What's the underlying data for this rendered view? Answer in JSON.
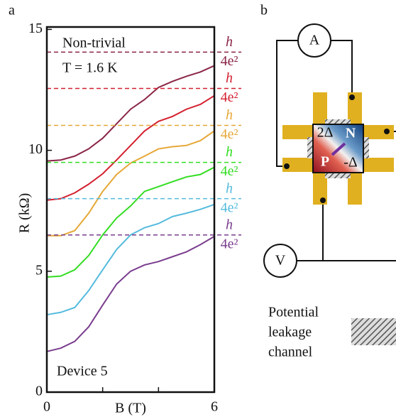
{
  "chart_data": {
    "type": "line",
    "panel_label": "a",
    "x_label": "B (T)",
    "y_label": "R (kΩ)",
    "annotations": [
      "Non-trivial",
      "T = 1.6 K",
      "Device 5"
    ],
    "x": [
      0,
      0.5,
      1,
      1.5,
      2,
      2.5,
      3,
      3.5,
      4,
      4.5,
      5,
      5.5,
      6
    ],
    "xlim": [
      0,
      6
    ],
    "xticks": [
      0,
      6
    ],
    "xminor_ticks": [
      2,
      4
    ],
    "ylim": [
      0,
      15.1
    ],
    "yticks": [
      0,
      5,
      10,
      15
    ],
    "series": [
      {
        "color": "#8b2545",
        "values": [
          9.56,
          9.6,
          9.76,
          10.06,
          10.5,
          11.1,
          11.7,
          12.1,
          12.6,
          12.85,
          13.06,
          13.24,
          13.5
        ],
        "plateau": 14.06,
        "plateau_label": {
          "numerator": "h",
          "denominator": "4e²"
        }
      },
      {
        "color": "#d42030",
        "values": [
          7.94,
          8.0,
          8.24,
          8.6,
          9.03,
          9.6,
          10.2,
          10.8,
          11.2,
          11.4,
          11.7,
          11.9,
          12.26
        ],
        "plateau": 12.56,
        "plateau_label": {
          "numerator": "h",
          "denominator": "4e²"
        }
      },
      {
        "color": "#e6a838",
        "values": [
          6.47,
          6.47,
          6.68,
          7.4,
          8.3,
          9.0,
          9.47,
          9.76,
          10.06,
          10.15,
          10.2,
          10.4,
          10.8
        ],
        "plateau": 11.03,
        "plateau_label": {
          "numerator": "h",
          "denominator": "4e²"
        }
      },
      {
        "color": "#33dd22",
        "values": [
          4.76,
          4.8,
          5.06,
          5.65,
          6.5,
          7.2,
          7.7,
          8.3,
          8.5,
          8.7,
          8.9,
          9.0,
          9.3
        ],
        "plateau": 9.5,
        "plateau_label": {
          "numerator": "h",
          "denominator": "4e²"
        }
      },
      {
        "color": "#55bbdd",
        "values": [
          3.2,
          3.3,
          3.5,
          4.2,
          5.06,
          5.9,
          6.5,
          6.8,
          6.97,
          7.26,
          7.4,
          7.56,
          7.76
        ],
        "plateau": 8.0,
        "plateau_label": {
          "numerator": "h",
          "denominator": "4e²"
        }
      },
      {
        "color": "#7a3d8e",
        "values": [
          1.68,
          1.82,
          2.1,
          2.7,
          3.6,
          4.47,
          5.0,
          5.26,
          5.4,
          5.6,
          5.8,
          6.1,
          6.44
        ],
        "plateau": 6.5,
        "plateau_label": {
          "numerator": "h",
          "denominator": "4e²"
        }
      }
    ]
  },
  "diagram": {
    "panel_label": "b",
    "ammeter": "A",
    "voltmeter": "V",
    "region_labels": [
      "2Δ",
      "N",
      "P",
      "-Δ"
    ],
    "legend": [
      "Potential",
      "leakage",
      "channel"
    ]
  }
}
